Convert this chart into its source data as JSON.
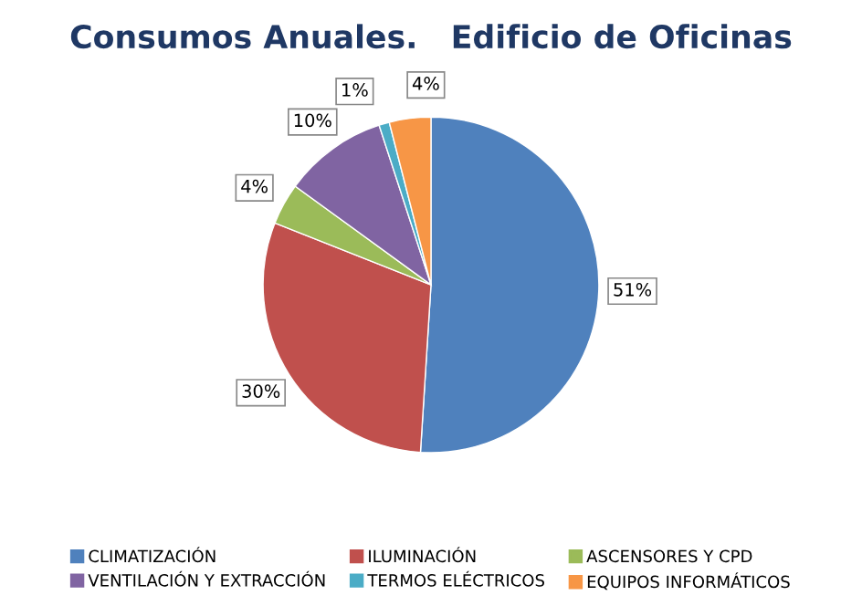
{
  "chart_data": {
    "type": "pie",
    "title": "Consumos Anuales.   Edificio de Oficinas",
    "categories": [
      "CLIMATIZACIÓN",
      "ILUMINACIÓN",
      "ASCENSORES Y CPD",
      "VENTILACIÓN Y EXTRACCIÓN",
      "TERMOS ELÉCTRICOS",
      "EQUIPOS INFORMÁTICOS"
    ],
    "values": [
      51,
      30,
      4,
      10,
      1,
      4
    ],
    "value_labels": [
      "51%",
      "30%",
      "4%",
      "10%",
      "1%",
      "4%"
    ],
    "colors": [
      "#4f81bd",
      "#c0504d",
      "#9bbb59",
      "#8064a2",
      "#4bacc6",
      "#f79646"
    ],
    "legend": "bottom"
  }
}
